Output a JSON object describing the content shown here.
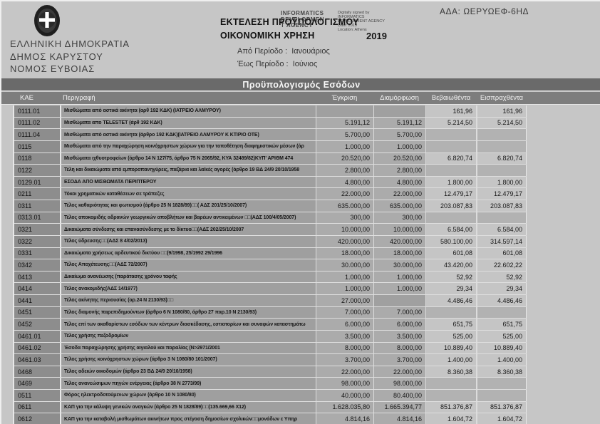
{
  "header": {
    "ada": "ΑΔΑ: ΩΕΡΥΩΕΦ-6ΗΔ",
    "org_lines": [
      "ΕΛΛΗΝΙΚΗ ΔΗΜΟΚΡΑΤΙΑ",
      "ΔΗΜΟΣ ΚΑΡΥΣΤΟΥ",
      "ΝΟΜΟΣ ΕΥΒΟΙΑΣ"
    ],
    "title_line1": "ΕΚΤΕΛΕΣΗ ΠΡΟΫΠΟΛΟΓΙΣΜΟΥ",
    "title_line2": "ΟΙΚΟΝΟΜΙΚΗ ΧΡΗΣΗ",
    "fiscal_year": "2019",
    "period_from_label": "Από Περίοδο :",
    "period_from_value": "Ιανουάριος",
    "period_to_label": "Έως Περίοδο :",
    "period_to_value": "Ιούνιος",
    "stamp": {
      "agency_lines": [
        "INFORMATICS",
        "DEVELOPMEN",
        "T AGENCY"
      ],
      "signature_lines": [
        "Digitally signed by",
        "INFORMATICS",
        "DEVELOPMENT AGENCY",
        "Date: 2019",
        "Location: Athens"
      ]
    }
  },
  "band_title": "Προϋπολογισμός Εσόδων",
  "colors": {
    "band": "#6a6a6a",
    "header_row": "#7d7d7d"
  },
  "table": {
    "columns": [
      "ΚΑΕ",
      "Περιγραφή",
      "Έγκριση",
      "Διαμόρφωση",
      "Βεβαιωθέντα",
      "Εισπραχθέντα"
    ],
    "rows": [
      {
        "kae": "0111.01",
        "desc": "Μισθώματα από αστικά ακίνητα (αρθ 192 ΚΔΚ)  (ΙΑΤΡΕΙΟ ΑΛΜΥΡΟΥ)",
        "egkrisi": "",
        "diamorfosi": "",
        "bebaiothenta": "161,96",
        "eispraxthenta": "161,96"
      },
      {
        "kae": "0111.02",
        "desc": "Μισθώματα απο TELESTET (άρθ 192 ΚΔΚ)",
        "egkrisi": "5.191,12",
        "diamorfosi": "5.191,12",
        "bebaiothenta": "5.214,50",
        "eispraxthenta": "5.214,50"
      },
      {
        "kae": "0111.04",
        "desc": "Μισθώματα από αστικά ακίνητα (άρθρο 192 ΚΔΚ)(ΙΑΤΡΕΙΟ ΑΛΜΥΡΟΥ Κ ΚΤΙΡΙΟ ΟΤΕ)",
        "egkrisi": "5.700,00",
        "diamorfosi": "5.700,00",
        "bebaiothenta": "",
        "eispraxthenta": ""
      },
      {
        "kae": "0115",
        "desc": "Μισθώματα από την παραχώρηση κοινόχρηστων χώρων για την τοποθέτηση διαφημιστικών μέσων (άρ",
        "egkrisi": "1.000,00",
        "diamorfosi": "1.000,00",
        "bebaiothenta": "",
        "eispraxthenta": ""
      },
      {
        "kae": "0118",
        "desc": "Μισθώματα ιχθυοτροφείων (άρθρο 14 Ν 127/75, άρθρο 75 Ν 2065/92, ΚΥΑ 32489/82)ΚΥΠ' ΑΡΙΘΜ 474",
        "egkrisi": "20.520,00",
        "diamorfosi": "20.520,00",
        "bebaiothenta": "6.820,74",
        "eispraxthenta": "6.820,74"
      },
      {
        "kae": "0122",
        "desc": "Τέλη και δικαιώματα από εμποροπανηγύρεις, παζάρια και λαϊκές αγορές (άρθρο 19 ΒΔ 24/9 20/10/1958",
        "egkrisi": "2.800,00",
        "diamorfosi": "2.800,00",
        "bebaiothenta": "",
        "eispraxthenta": ""
      },
      {
        "kae": "0129.01",
        "desc": "ΕΣΟΔΑ ΑΠΟ ΜΙΣΘΩΜΑΤΑ ΠΕΡΙΠΤΕΡΟΥ",
        "egkrisi": "4.800,00",
        "diamorfosi": "4.800,00",
        "bebaiothenta": "1.800,00",
        "eispraxthenta": "1.800,00"
      },
      {
        "kae": "0211",
        "desc": "Τόκοι χρηματικών καταθέσεων σε τράπεζες",
        "egkrisi": "22.000,00",
        "diamorfosi": "22.000,00",
        "bebaiothenta": "12.479,17",
        "eispraxthenta": "12.479,17"
      },
      {
        "kae": "0311",
        "desc": "Τέλος καθαριότητας και φωτισμού (άρθρο 25 Ν 1828/89)□□( ΑΔΣ 201/25/10/2007)",
        "egkrisi": "635.000,00",
        "diamorfosi": "635.000,00",
        "bebaiothenta": "203.087,83",
        "eispraxthenta": "203.087,83"
      },
      {
        "kae": "0313.01",
        "desc": "Τέλος αποκομιδής αδρανών γεωργικών αποβλήτων και βαρέων αντικειμένων  □□(ΑΔΣ 100/4/05/2007)",
        "egkrisi": "300,00",
        "diamorfosi": "300,00",
        "bebaiothenta": "",
        "eispraxthenta": ""
      },
      {
        "kae": "0321",
        "desc": "Δικαιώματα σύνδεσης και επανασύνδεσης με το δίκτυο□□(ΑΔΣ 202/25/10/2007",
        "egkrisi": "10.000,00",
        "diamorfosi": "10.000,00",
        "bebaiothenta": "6.584,00",
        "eispraxthenta": "6.584,00"
      },
      {
        "kae": "0322",
        "desc": "Τέλος ύδρευσης□□(ΑΔΣ 8  4/02/2013)",
        "egkrisi": "420.000,00",
        "diamorfosi": "420.000,00",
        "bebaiothenta": "580.100,00",
        "eispraxthenta": "314.597,14"
      },
      {
        "kae": "0331",
        "desc": "Δικαιώματα χρήσεως αρδευτικού  δικτύου  □□(9/1998, 25/1992 29/1996",
        "egkrisi": "18.000,00",
        "diamorfosi": "18.000,00",
        "bebaiothenta": "601,08",
        "eispraxthenta": "601,08"
      },
      {
        "kae": "0342",
        "desc": "Τέλος Αποχέτευσης□□(ΑΔΣ 72/2007)",
        "egkrisi": "30.000,00",
        "diamorfosi": "30.000,00",
        "bebaiothenta": "43.420,00",
        "eispraxthenta": "22.602,22"
      },
      {
        "kae": "0413",
        "desc": "Δικαίωμα ανανέωσης (παράτασης χρόνου ταφής",
        "egkrisi": "1.000,00",
        "diamorfosi": "1.000,00",
        "bebaiothenta": "52,92",
        "eispraxthenta": "52,92"
      },
      {
        "kae": "0414",
        "desc": "Τέλος ανακομιδής(ΑΔΣ 14/1977)",
        "egkrisi": "1.000,00",
        "diamorfosi": "1.000,00",
        "bebaiothenta": "29,34",
        "eispraxthenta": "29,34"
      },
      {
        "kae": "0441",
        "desc": "Τέλος ακίνητης περιουσίας (αρ.24 Ν 2130/93)□□",
        "egkrisi": "27.000,00",
        "diamorfosi": "",
        "bebaiothenta": "4.486,46",
        "eispraxthenta": "4.486,46"
      },
      {
        "kae": "0451",
        "desc": "Τέλος διαμονής παρεπιδημούντων (άρθρο 6 Ν 1080/80, άρθρο 27 παρ.10 Ν 2130/93)",
        "egkrisi": "7.000,00",
        "diamorfosi": "7.000,00",
        "bebaiothenta": "",
        "eispraxthenta": ""
      },
      {
        "kae": "0452",
        "desc": "Τέλος επί των ακαθαρίστων εσόδων των κέντρων διασκέδασης, εστιατορίων και συναφών καταστημάτω",
        "egkrisi": "6.000,00",
        "diamorfosi": "6.000,00",
        "bebaiothenta": "651,75",
        "eispraxthenta": "651,75"
      },
      {
        "kae": "0461.01",
        "desc": "Τέλος χρήσης πεζοδρομίων",
        "egkrisi": "3.500,00",
        "diamorfosi": "3.500,00",
        "bebaiothenta": "525,00",
        "eispraxthenta": "525,00"
      },
      {
        "kae": "0461.02",
        "desc": "Έσοδα παραχώρησης χρήσης αιγιαλού και παραλίας (Ν>2971/2001",
        "egkrisi": "8.000,00",
        "diamorfosi": "8.000,00",
        "bebaiothenta": "10.889,40",
        "eispraxthenta": "10.889,40"
      },
      {
        "kae": "0461.03",
        "desc": "Τέλος χρήσης κοινόχρηστων χώρων (άρθρο 3 Ν 1080/80 101/2007)",
        "egkrisi": "3.700,00",
        "diamorfosi": "3.700,00",
        "bebaiothenta": "1.400,00",
        "eispraxthenta": "1.400,00"
      },
      {
        "kae": "0468",
        "desc": "Τέλος αδειών οικοδομών (άρθρο 23 ΒΔ 24/9 20/10/1958)",
        "egkrisi": "22.000,00",
        "diamorfosi": "22.000,00",
        "bebaiothenta": "8.360,38",
        "eispraxthenta": "8.360,38"
      },
      {
        "kae": "0469",
        "desc": "Τέλος ανανεώσιμων πηγών ενέργειας (άρθρο 38 Ν 2773/99)",
        "egkrisi": "98.000,00",
        "diamorfosi": "98.000,00",
        "bebaiothenta": "",
        "eispraxthenta": ""
      },
      {
        "kae": "0511",
        "desc": "Φόρος ηλεκτροδοτούμενων χώρων (άρθρο 10 Ν 1080/80)",
        "egkrisi": "40.000,00",
        "diamorfosi": "80.400,00",
        "bebaiothenta": "",
        "eispraxthenta": ""
      },
      {
        "kae": "0611",
        "desc": "ΚΑΠ για την κάλυψη γενικών αναγκών (άρθρο 25 Ν 1828/89)□□(135.669,66 Χ12)",
        "egkrisi": "1.628.035,80",
        "diamorfosi": "1.665.394,77",
        "bebaiothenta": "851.376,87",
        "eispraxthenta": "851.376,87"
      },
      {
        "kae": "0612",
        "desc": "ΚΑΠ για την καταβολή μισθωμάτων ακινήτων προς στέγαση δημοσίων  σχολικών□□μονάδων ε Υπηρ",
        "egkrisi": "4.814,16",
        "diamorfosi": "4.814,16",
        "bebaiothenta": "1.604,72",
        "eispraxthenta": "1.604,72"
      }
    ]
  }
}
